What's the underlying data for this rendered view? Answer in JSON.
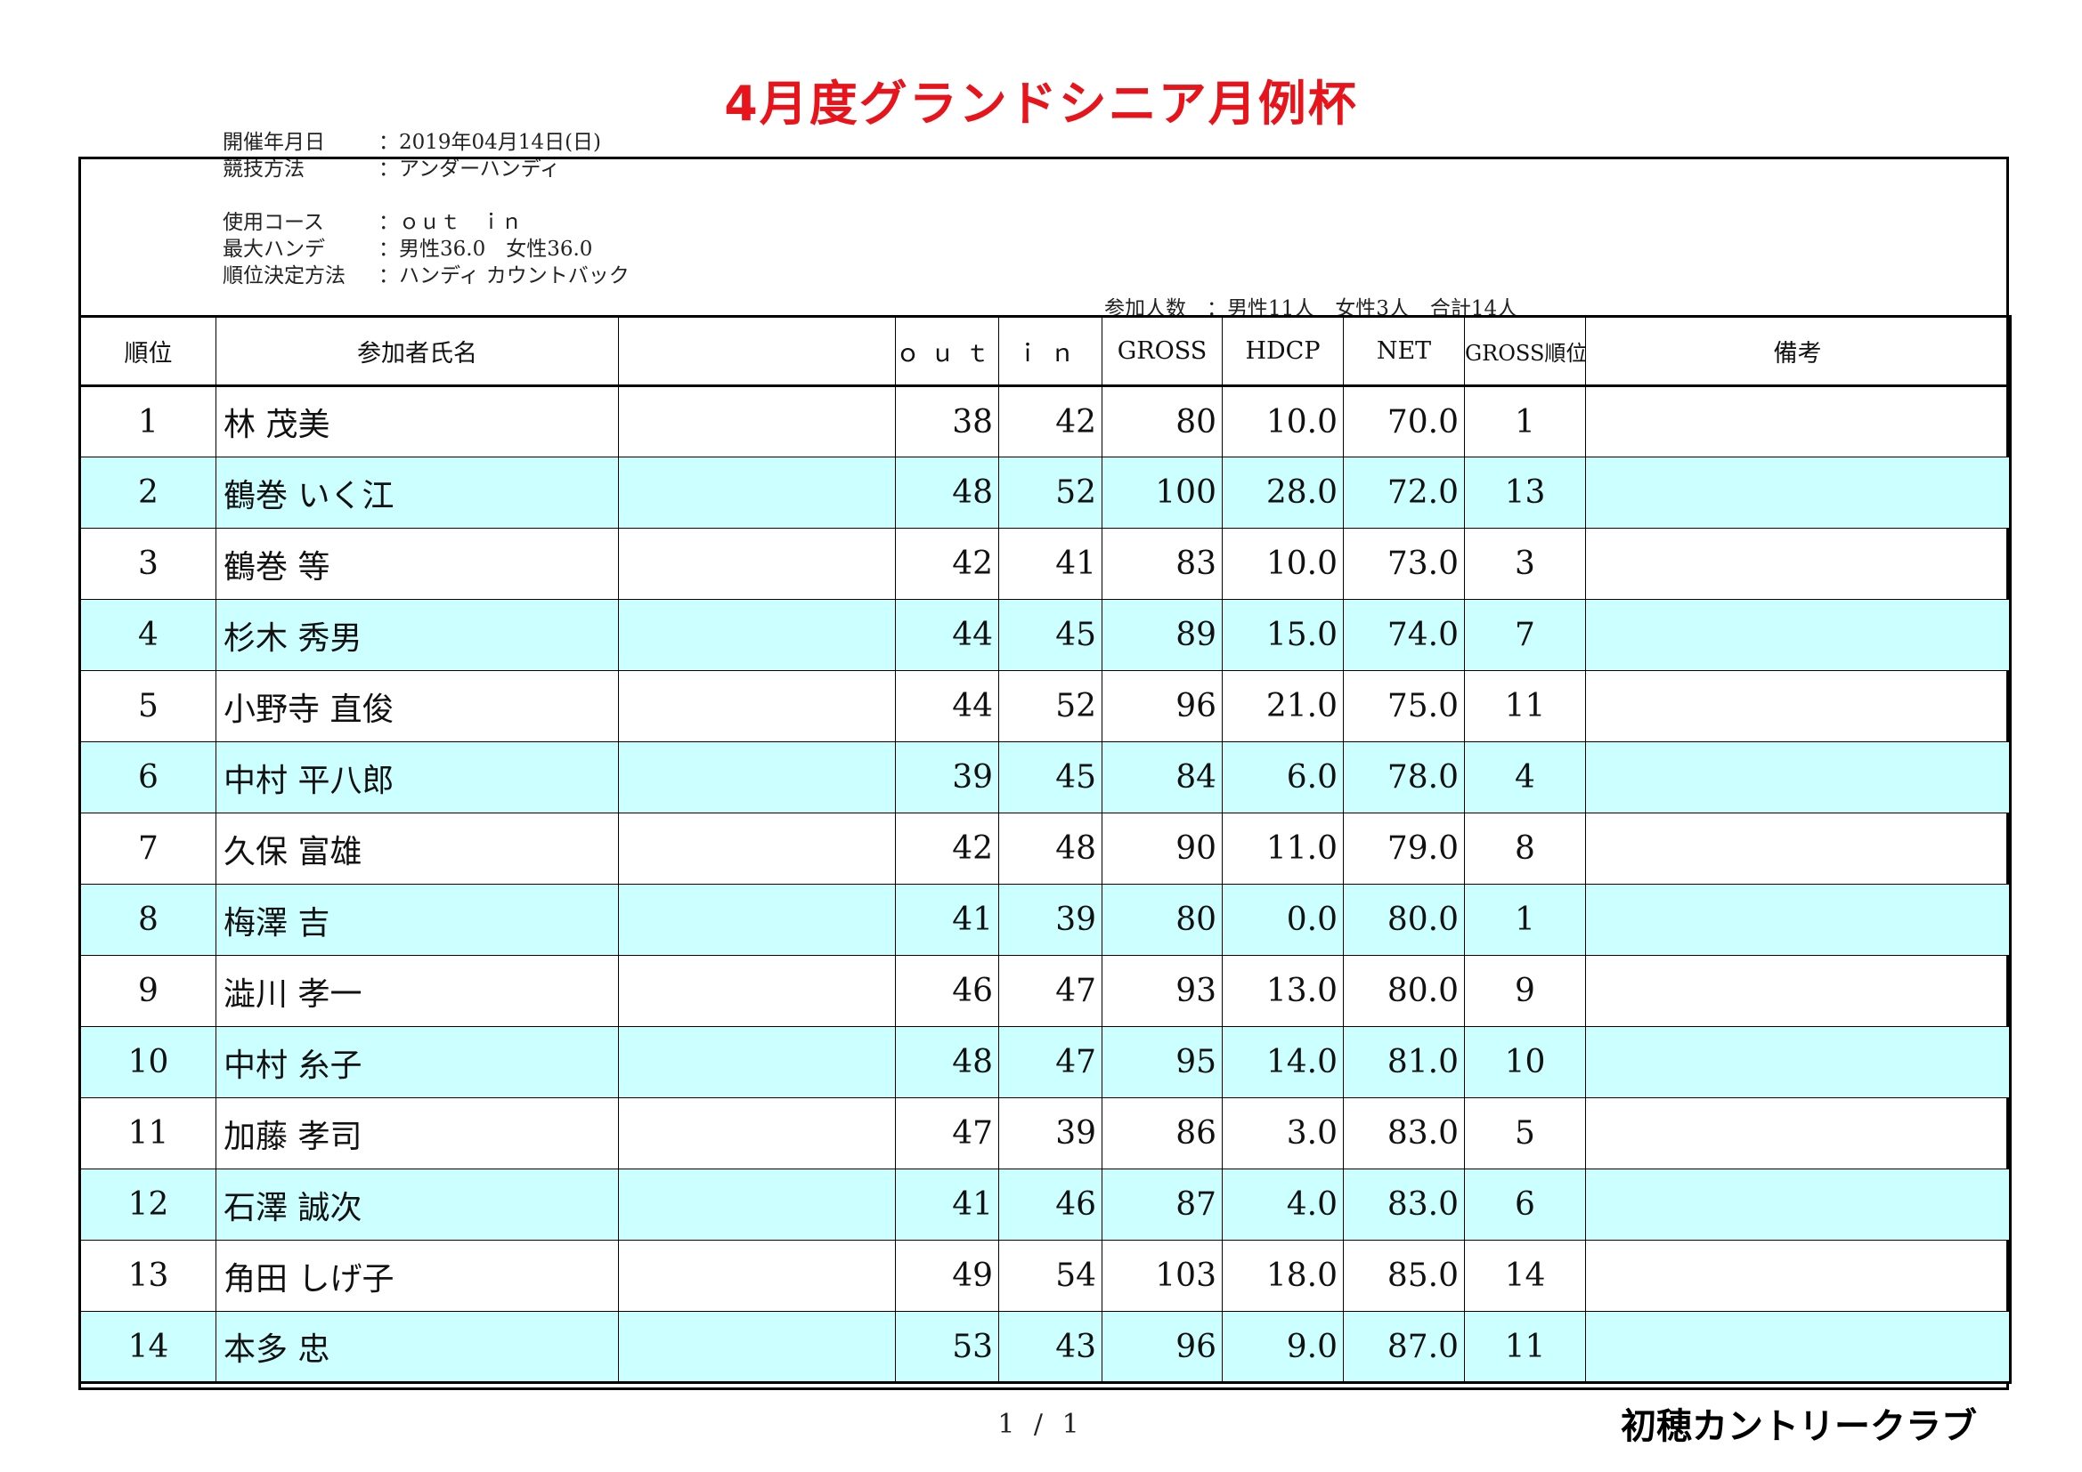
{
  "title": "4月度グランドシニア月例杯",
  "info": {
    "date": {
      "label": "開催年月日",
      "value": "：2019年04月14日(日)"
    },
    "method": {
      "label": "競技方法",
      "value": "：アンダーハンディ"
    },
    "course": {
      "label": "使用コース",
      "value": "：ｏｕｔ　ｉｎ"
    },
    "max_handicap": {
      "label": "最大ハンデ",
      "value": "：男性36.0　女性36.0"
    },
    "ranking": {
      "label": "順位決定方法",
      "value": "：ハンディ カウントバック"
    }
  },
  "participants": "参加人数　：男性11人　女性3人　合計14人",
  "headers": {
    "rank": "順位",
    "name": "参加者氏名",
    "out": "ｏｕｔ",
    "in": "ｉｎ",
    "gross": "GROSS",
    "hdcp": "HDCP",
    "net": "NET",
    "gross_rank": "GROSS順位",
    "remarks": "備考"
  },
  "rows": [
    {
      "rank": "1",
      "name": "林 茂美",
      "out": "38",
      "in": "42",
      "gross": "80",
      "hdcp": "10.0",
      "net": "70.0",
      "gross_rank": "1"
    },
    {
      "rank": "2",
      "name": "鶴巻 いく江",
      "out": "48",
      "in": "52",
      "gross": "100",
      "hdcp": "28.0",
      "net": "72.0",
      "gross_rank": "13"
    },
    {
      "rank": "3",
      "name": "鶴巻 等",
      "out": "42",
      "in": "41",
      "gross": "83",
      "hdcp": "10.0",
      "net": "73.0",
      "gross_rank": "3"
    },
    {
      "rank": "4",
      "name": "杉木 秀男",
      "out": "44",
      "in": "45",
      "gross": "89",
      "hdcp": "15.0",
      "net": "74.0",
      "gross_rank": "7"
    },
    {
      "rank": "5",
      "name": "小野寺 直俊",
      "out": "44",
      "in": "52",
      "gross": "96",
      "hdcp": "21.0",
      "net": "75.0",
      "gross_rank": "11"
    },
    {
      "rank": "6",
      "name": "中村 平八郎",
      "out": "39",
      "in": "45",
      "gross": "84",
      "hdcp": "6.0",
      "net": "78.0",
      "gross_rank": "4"
    },
    {
      "rank": "7",
      "name": "久保 富雄",
      "out": "42",
      "in": "48",
      "gross": "90",
      "hdcp": "11.0",
      "net": "79.0",
      "gross_rank": "8"
    },
    {
      "rank": "8",
      "name": "梅澤 吉",
      "out": "41",
      "in": "39",
      "gross": "80",
      "hdcp": "0.0",
      "net": "80.0",
      "gross_rank": "1"
    },
    {
      "rank": "9",
      "name": "澁川 孝一",
      "out": "46",
      "in": "47",
      "gross": "93",
      "hdcp": "13.0",
      "net": "80.0",
      "gross_rank": "9"
    },
    {
      "rank": "10",
      "name": "中村 糸子",
      "out": "48",
      "in": "47",
      "gross": "95",
      "hdcp": "14.0",
      "net": "81.0",
      "gross_rank": "10"
    },
    {
      "rank": "11",
      "name": "加藤 孝司",
      "out": "47",
      "in": "39",
      "gross": "86",
      "hdcp": "3.0",
      "net": "83.0",
      "gross_rank": "5"
    },
    {
      "rank": "12",
      "name": "石澤 誠次",
      "out": "41",
      "in": "46",
      "gross": "87",
      "hdcp": "4.0",
      "net": "83.0",
      "gross_rank": "6"
    },
    {
      "rank": "13",
      "name": "角田 しげ子",
      "out": "49",
      "in": "54",
      "gross": "103",
      "hdcp": "18.0",
      "net": "85.0",
      "gross_rank": "14"
    },
    {
      "rank": "14",
      "name": "本多 忠",
      "out": "53",
      "in": "43",
      "gross": "96",
      "hdcp": "9.0",
      "net": "87.0",
      "gross_rank": "11"
    }
  ],
  "colors": {
    "title": "#e8141c",
    "alt_row": "#ccffff"
  },
  "footer": {
    "page": "1 / 1",
    "club": "初穂カントリークラブ"
  }
}
